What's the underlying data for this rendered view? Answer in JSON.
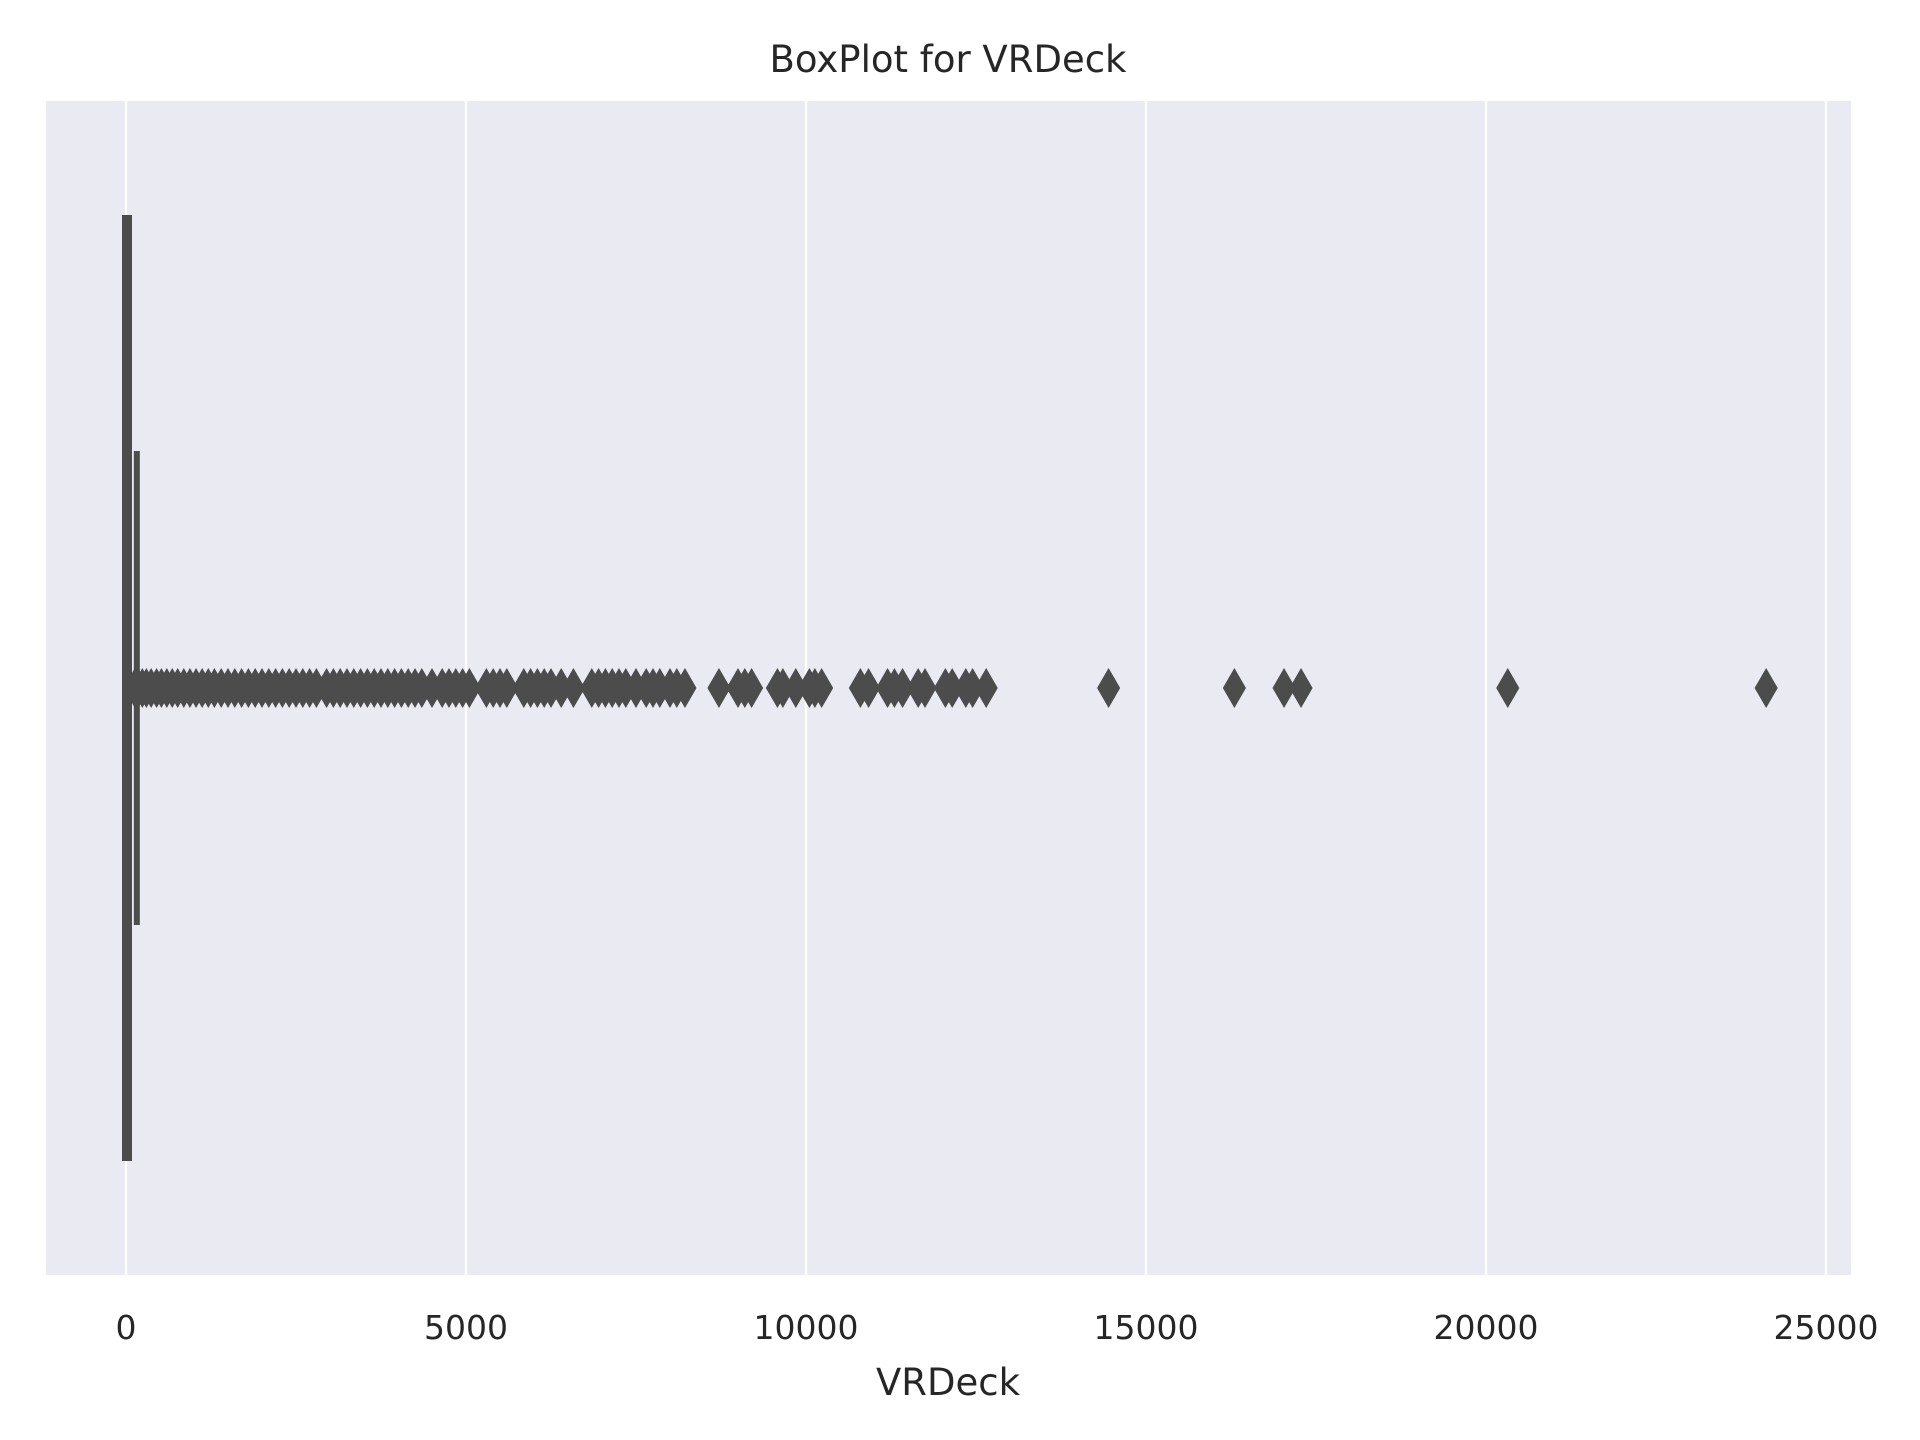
{
  "chart_data": {
    "type": "box",
    "orientation": "horizontal",
    "title": "BoxPlot for VRDeck",
    "xlabel": "VRDeck",
    "ylabel": "",
    "xlim": [
      -1200,
      25000
    ],
    "xticks": [
      0,
      5000,
      10000,
      15000,
      20000,
      25000
    ],
    "xtick_labels": [
      "0",
      "5000",
      "10000",
      "15000",
      "20000",
      "25000"
    ],
    "grid": true,
    "box": {
      "min": 0,
      "q1": 0,
      "median": 0,
      "q3": 46,
      "whisker_low": 0,
      "whisker_high": 115
    },
    "outliers": [
      130,
      180,
      240,
      300,
      370,
      450,
      520,
      600,
      680,
      760,
      850,
      940,
      1030,
      1120,
      1210,
      1300,
      1400,
      1500,
      1600,
      1700,
      1800,
      1900,
      2000,
      2100,
      2200,
      2300,
      2400,
      2500,
      2600,
      2700,
      2800,
      2950,
      3050,
      3150,
      3250,
      3350,
      3450,
      3550,
      3650,
      3750,
      3850,
      3950,
      4050,
      4150,
      4250,
      4350,
      4500,
      4650,
      4750,
      4850,
      4950,
      5050,
      5300,
      5400,
      5500,
      5600,
      5850,
      5950,
      6050,
      6150,
      6250,
      6400,
      6580,
      6850,
      6950,
      7050,
      7150,
      7250,
      7350,
      7500,
      7650,
      7750,
      7850,
      8000,
      8100,
      8220,
      8720,
      9000,
      9100,
      9200,
      9580,
      9660,
      9850,
      10050,
      10130,
      10230,
      10800,
      10920,
      11200,
      11300,
      11420,
      11650,
      11750,
      12050,
      12150,
      12350,
      12450,
      12650,
      14450,
      16300,
      17030,
      17280,
      20320,
      24120
    ],
    "colors": {
      "background": "#eaeaf2",
      "grid": "#ffffff",
      "box": "#4c4c4c",
      "text": "#262626"
    }
  }
}
